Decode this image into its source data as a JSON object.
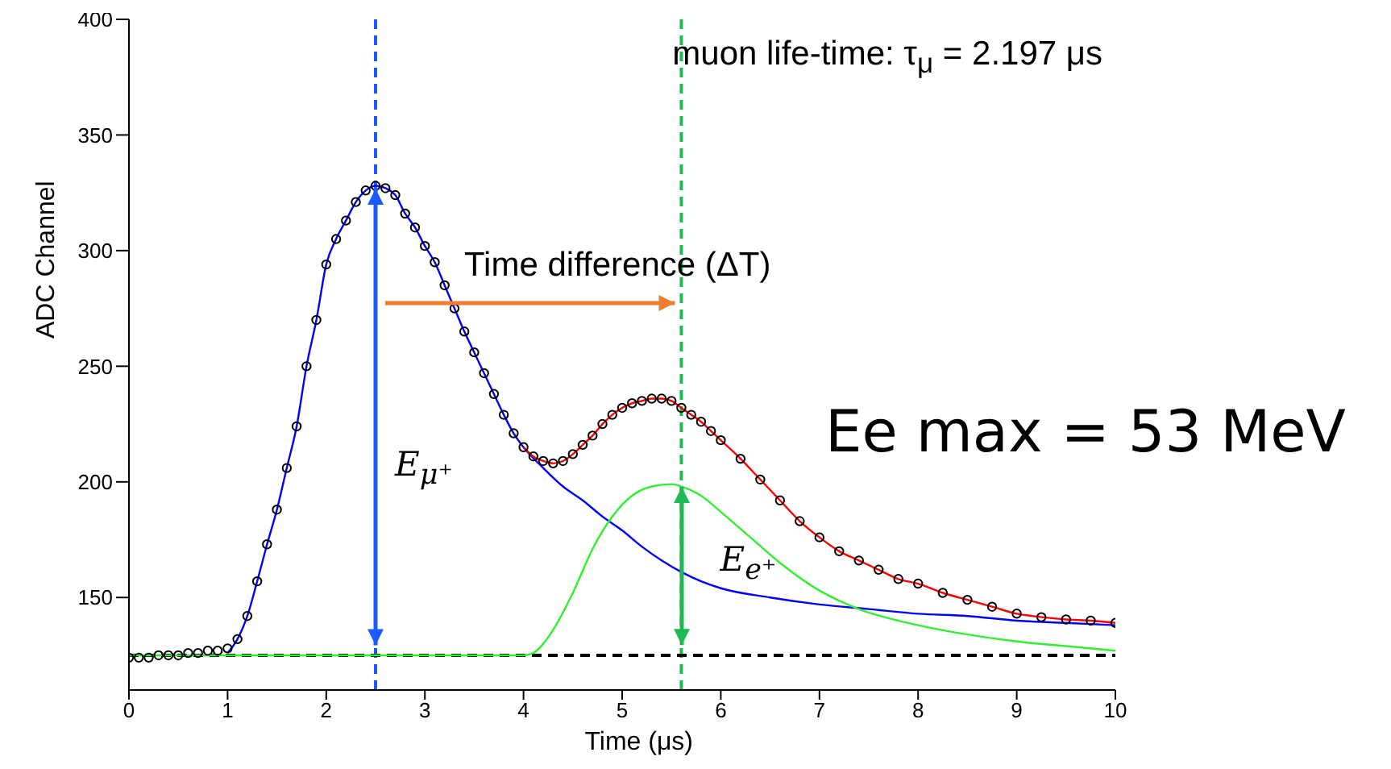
{
  "chart_data": {
    "type": "scatter",
    "xlabel": "Time (μs)",
    "ylabel": "ADC Channel",
    "xlim": [
      0,
      10
    ],
    "xticks": [
      0,
      1,
      2,
      3,
      4,
      5,
      6,
      7,
      8,
      9,
      10
    ],
    "ylim": [
      110,
      400
    ],
    "yticks": [
      150,
      200,
      250,
      300,
      350,
      400
    ],
    "grid": false,
    "legend": false,
    "series": [
      {
        "type": "scatter",
        "marker": "circle",
        "color": "#000000",
        "x": [
          0,
          0.1,
          0.2,
          0.3,
          0.4,
          0.5,
          0.6,
          0.7,
          0.8,
          0.9,
          1.0,
          1.1,
          1.2,
          1.3,
          1.4,
          1.5,
          1.6,
          1.7,
          1.8,
          1.9,
          2.0,
          2.1,
          2.2,
          2.3,
          2.4,
          2.5,
          2.6,
          2.7,
          2.8,
          2.9,
          3.0,
          3.1,
          3.2,
          3.3,
          3.4,
          3.5,
          3.6,
          3.7,
          3.8,
          3.9,
          4.0,
          4.1,
          4.2,
          4.3,
          4.4,
          4.5,
          4.6,
          4.7,
          4.8,
          4.9,
          5.0,
          5.1,
          5.2,
          5.3,
          5.4,
          5.5,
          5.6,
          5.7,
          5.8,
          5.9,
          6.0,
          6.2,
          6.4,
          6.6,
          6.8,
          7.0,
          7.2,
          7.4,
          7.6,
          7.8,
          8.0,
          8.25,
          8.5,
          8.75,
          9.0,
          9.25,
          9.5,
          9.75,
          10
        ],
        "values": [
          124,
          124,
          124,
          125,
          125,
          125,
          126,
          126,
          127,
          127,
          128,
          132,
          142,
          157,
          173,
          188,
          206,
          224,
          250,
          270,
          294,
          305,
          313,
          321,
          326,
          328,
          327,
          324,
          316,
          310,
          302,
          295,
          285,
          275,
          265,
          256,
          247,
          238,
          229,
          221,
          215,
          211,
          209,
          208,
          209,
          212,
          216,
          220,
          225,
          229,
          232,
          234,
          235,
          236,
          236,
          235,
          232,
          229,
          226,
          222,
          218,
          210,
          201,
          192,
          183,
          176,
          170,
          166,
          162,
          158,
          156,
          152,
          149,
          146,
          143,
          141.5,
          140.5,
          140,
          139
        ]
      },
      {
        "type": "line",
        "marker": "none",
        "color": "#0000ff",
        "x": [
          1.0,
          1.1,
          1.2,
          1.3,
          1.4,
          1.5,
          1.6,
          1.7,
          1.8,
          1.9,
          2.0,
          2.1,
          2.2,
          2.3,
          2.4,
          2.5,
          2.6,
          2.7,
          2.8,
          2.9,
          3.0,
          3.1,
          3.2,
          3.3,
          3.4,
          3.5,
          3.6,
          3.7,
          3.8,
          3.9,
          4.0,
          4.2,
          4.4,
          4.6,
          4.8,
          5.0,
          5.2,
          5.4,
          5.6,
          5.8,
          6.0,
          6.5,
          7.0,
          7.5,
          8.0,
          8.5,
          9.0,
          9.5,
          10
        ],
        "values": [
          126,
          132,
          142,
          157,
          173,
          188,
          206,
          224,
          250,
          270,
          294,
          305,
          313,
          321,
          326,
          328,
          327,
          324,
          316,
          310,
          302,
          295,
          285,
          275,
          265,
          256,
          247,
          238,
          229,
          221,
          215,
          206,
          198,
          192,
          185,
          179,
          172,
          166,
          161,
          157,
          154,
          150,
          147,
          145,
          143,
          142,
          140,
          139,
          138
        ]
      },
      {
        "type": "line",
        "marker": "none",
        "color": "#ff0000",
        "x": [
          4.0,
          4.1,
          4.2,
          4.3,
          4.4,
          4.5,
          4.6,
          4.7,
          4.8,
          4.9,
          5.0,
          5.1,
          5.2,
          5.3,
          5.4,
          5.5,
          5.6,
          5.7,
          5.8,
          5.9,
          6.0,
          6.2,
          6.4,
          6.6,
          6.8,
          7.0,
          7.2,
          7.4,
          7.6,
          7.8,
          8.0,
          8.25,
          8.5,
          8.75,
          9.0,
          9.25,
          9.5,
          9.75,
          10
        ],
        "values": [
          215,
          211,
          209,
          208,
          209,
          212,
          216,
          220,
          225,
          229,
          232,
          234,
          235,
          236,
          236,
          235,
          232,
          229,
          226,
          222,
          218,
          210,
          201,
          192,
          183,
          176,
          170,
          166,
          162,
          158,
          156,
          152,
          149,
          146,
          143,
          141.5,
          140.5,
          140,
          139
        ]
      },
      {
        "type": "line",
        "marker": "none",
        "color": "#33ee33",
        "x": [
          0,
          4.0,
          4.1,
          4.2,
          4.3,
          4.5,
          4.7,
          4.9,
          5.1,
          5.3,
          5.5,
          5.6,
          5.8,
          6.0,
          6.3,
          6.6,
          7.0,
          7.4,
          8.0,
          8.5,
          9.0,
          9.5,
          10
        ],
        "values": [
          125,
          125,
          126,
          130,
          136,
          152,
          171,
          185,
          194,
          198,
          199,
          198,
          194,
          187,
          176,
          165,
          153,
          145,
          138,
          134,
          131,
          129,
          127
        ]
      }
    ],
    "ref_lines": [
      {
        "axis": "x",
        "value": 2.5,
        "color": "#1a5cff",
        "line_style": "dashed"
      },
      {
        "axis": "x",
        "value": 5.6,
        "color": "#1db954",
        "line_style": "dashed"
      },
      {
        "axis": "y",
        "value": 125,
        "color": "#000000",
        "line_style": "dashed"
      }
    ],
    "annotations": [
      "muon life-time: τ$_{μ}$ = 2.197 μs",
      "Time difference (ΔT)",
      "E$_{μ⁺}$",
      "E$_{e⁺}$",
      "Ee max = 53 MeV"
    ]
  }
}
